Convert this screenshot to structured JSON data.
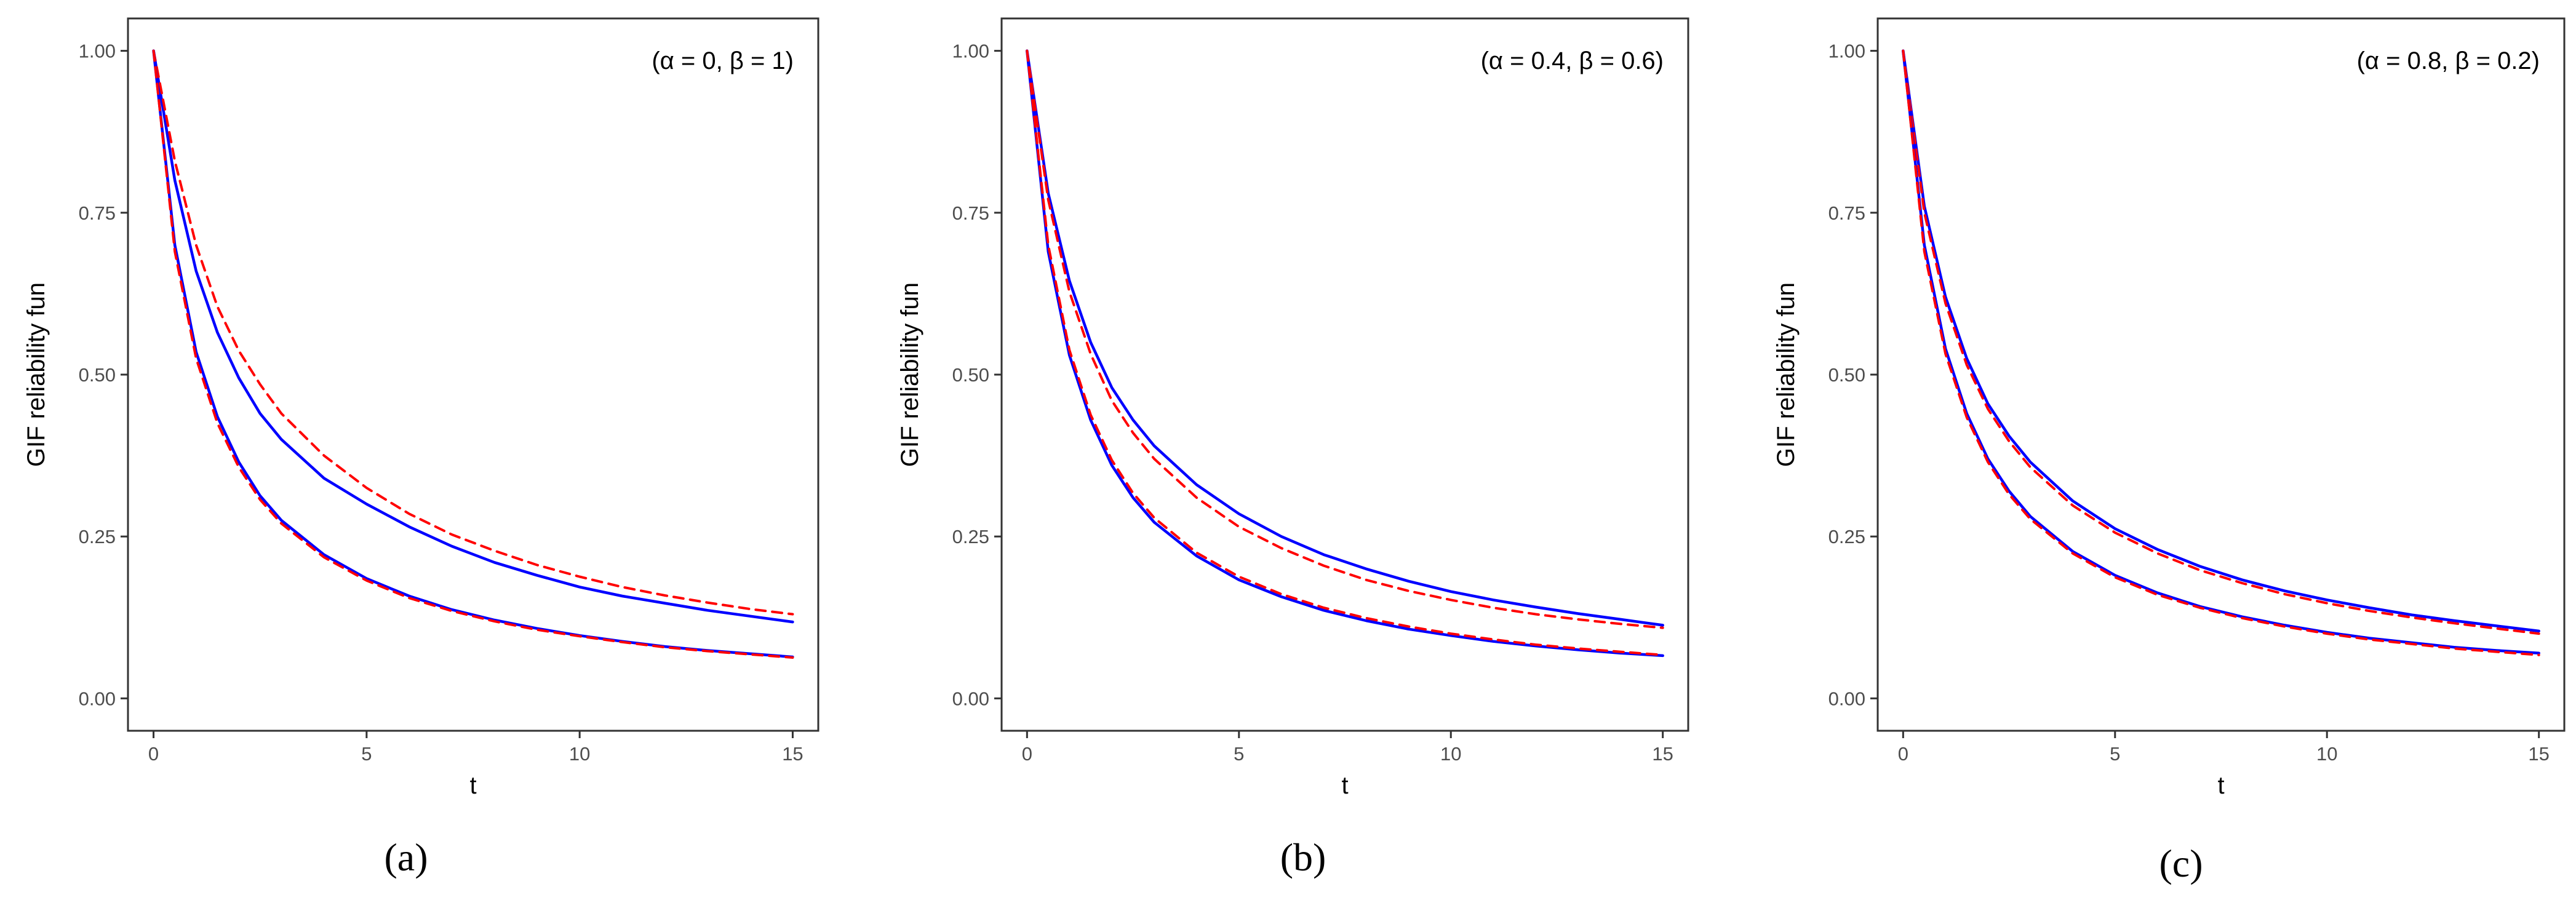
{
  "chart_data": [
    {
      "type": "line",
      "panel_label": "(a)",
      "annotation": "(α = 0, β = 1)",
      "xlabel": "t",
      "ylabel": "GIF reliability fun",
      "xlim": [
        -0.6,
        15.6
      ],
      "ylim": [
        -0.05,
        1.05
      ],
      "x_ticks": [
        "0",
        "5",
        "10",
        "15"
      ],
      "y_ticks": [
        "0.00",
        "0.25",
        "0.50",
        "0.75",
        "1.00"
      ],
      "grid": false,
      "colors": {
        "solid": "#0000ff",
        "dashed": "#ff0000"
      },
      "x": [
        0,
        0.5,
        1,
        1.5,
        2,
        2.5,
        3,
        4,
        5,
        6,
        7,
        8,
        9,
        10,
        11,
        12,
        13,
        14,
        15
      ],
      "series": [
        {
          "style": "solid",
          "color": "#0000ff",
          "values": [
            1.0,
            0.8,
            0.66,
            0.565,
            0.495,
            0.44,
            0.4,
            0.34,
            0.3,
            0.265,
            0.235,
            0.21,
            0.19,
            0.172,
            0.158,
            0.147,
            0.136,
            0.127,
            0.118
          ]
        },
        {
          "style": "dashed",
          "color": "#ff0000",
          "values": [
            1.0,
            0.83,
            0.7,
            0.605,
            0.537,
            0.485,
            0.44,
            0.375,
            0.325,
            0.285,
            0.253,
            0.228,
            0.206,
            0.188,
            0.172,
            0.159,
            0.148,
            0.138,
            0.13
          ]
        },
        {
          "style": "solid",
          "color": "#0000ff",
          "values": [
            1.0,
            0.7,
            0.535,
            0.435,
            0.365,
            0.313,
            0.275,
            0.222,
            0.185,
            0.158,
            0.137,
            0.121,
            0.108,
            0.097,
            0.088,
            0.08,
            0.074,
            0.069,
            0.064
          ]
        },
        {
          "style": "dashed",
          "color": "#ff0000",
          "values": [
            1.0,
            0.69,
            0.525,
            0.425,
            0.357,
            0.307,
            0.27,
            0.218,
            0.182,
            0.155,
            0.135,
            0.119,
            0.106,
            0.096,
            0.087,
            0.079,
            0.073,
            0.068,
            0.063
          ]
        }
      ]
    },
    {
      "type": "line",
      "panel_label": "(b)",
      "annotation": "(α = 0.4, β = 0.6)",
      "xlabel": "t",
      "ylabel": "GIF reliability fun",
      "xlim": [
        -0.6,
        15.6
      ],
      "ylim": [
        -0.05,
        1.05
      ],
      "x_ticks": [
        "0",
        "5",
        "10",
        "15"
      ],
      "y_ticks": [
        "0.00",
        "0.25",
        "0.50",
        "0.75",
        "1.00"
      ],
      "grid": false,
      "colors": {
        "solid": "#0000ff",
        "dashed": "#ff0000"
      },
      "x": [
        0,
        0.5,
        1,
        1.5,
        2,
        2.5,
        3,
        4,
        5,
        6,
        7,
        8,
        9,
        10,
        11,
        12,
        13,
        14,
        15
      ],
      "series": [
        {
          "style": "solid",
          "color": "#0000ff",
          "values": [
            1.0,
            0.78,
            0.645,
            0.55,
            0.48,
            0.43,
            0.39,
            0.33,
            0.285,
            0.25,
            0.222,
            0.2,
            0.181,
            0.165,
            0.152,
            0.141,
            0.131,
            0.122,
            0.113
          ]
        },
        {
          "style": "dashed",
          "color": "#ff0000",
          "values": [
            1.0,
            0.77,
            0.628,
            0.532,
            0.46,
            0.41,
            0.37,
            0.31,
            0.265,
            0.232,
            0.205,
            0.183,
            0.166,
            0.152,
            0.14,
            0.13,
            0.122,
            0.115,
            0.109
          ]
        },
        {
          "style": "solid",
          "color": "#0000ff",
          "values": [
            1.0,
            0.69,
            0.53,
            0.43,
            0.36,
            0.31,
            0.272,
            0.22,
            0.183,
            0.157,
            0.136,
            0.12,
            0.107,
            0.097,
            0.088,
            0.081,
            0.075,
            0.07,
            0.066
          ]
        },
        {
          "style": "dashed",
          "color": "#ff0000",
          "values": [
            1.0,
            0.7,
            0.538,
            0.438,
            0.368,
            0.317,
            0.279,
            0.225,
            0.188,
            0.161,
            0.14,
            0.124,
            0.111,
            0.1,
            0.091,
            0.083,
            0.077,
            0.072,
            0.067
          ]
        }
      ]
    },
    {
      "type": "line",
      "panel_label": "(c)",
      "annotation": "(α = 0.8, β = 0.2)",
      "xlabel": "t",
      "ylabel": "GIF reliability fun",
      "xlim": [
        -0.6,
        15.6
      ],
      "ylim": [
        -0.05,
        1.05
      ],
      "x_ticks": [
        "0",
        "5",
        "10",
        "15"
      ],
      "y_ticks": [
        "0.00",
        "0.25",
        "0.50",
        "0.75",
        "1.00"
      ],
      "grid": false,
      "colors": {
        "solid": "#0000ff",
        "dashed": "#ff0000"
      },
      "x": [
        0,
        0.5,
        1,
        1.5,
        2,
        2.5,
        3,
        4,
        5,
        6,
        7,
        8,
        9,
        10,
        11,
        12,
        13,
        14,
        15
      ],
      "series": [
        {
          "style": "solid",
          "color": "#0000ff",
          "values": [
            1.0,
            0.76,
            0.62,
            0.525,
            0.455,
            0.405,
            0.365,
            0.305,
            0.262,
            0.23,
            0.204,
            0.183,
            0.166,
            0.152,
            0.14,
            0.129,
            0.12,
            0.112,
            0.104
          ]
        },
        {
          "style": "dashed",
          "color": "#ff0000",
          "values": [
            1.0,
            0.75,
            0.61,
            0.515,
            0.447,
            0.397,
            0.357,
            0.298,
            0.256,
            0.224,
            0.198,
            0.178,
            0.161,
            0.147,
            0.135,
            0.125,
            0.116,
            0.108,
            0.1
          ]
        },
        {
          "style": "solid",
          "color": "#0000ff",
          "values": [
            1.0,
            0.7,
            0.54,
            0.44,
            0.37,
            0.32,
            0.281,
            0.227,
            0.19,
            0.163,
            0.142,
            0.126,
            0.113,
            0.102,
            0.093,
            0.086,
            0.079,
            0.074,
            0.07
          ]
        },
        {
          "style": "dashed",
          "color": "#ff0000",
          "values": [
            1.0,
            0.69,
            0.532,
            0.434,
            0.365,
            0.315,
            0.277,
            0.224,
            0.187,
            0.16,
            0.14,
            0.124,
            0.111,
            0.1,
            0.091,
            0.084,
            0.077,
            0.072,
            0.067
          ]
        }
      ]
    }
  ]
}
